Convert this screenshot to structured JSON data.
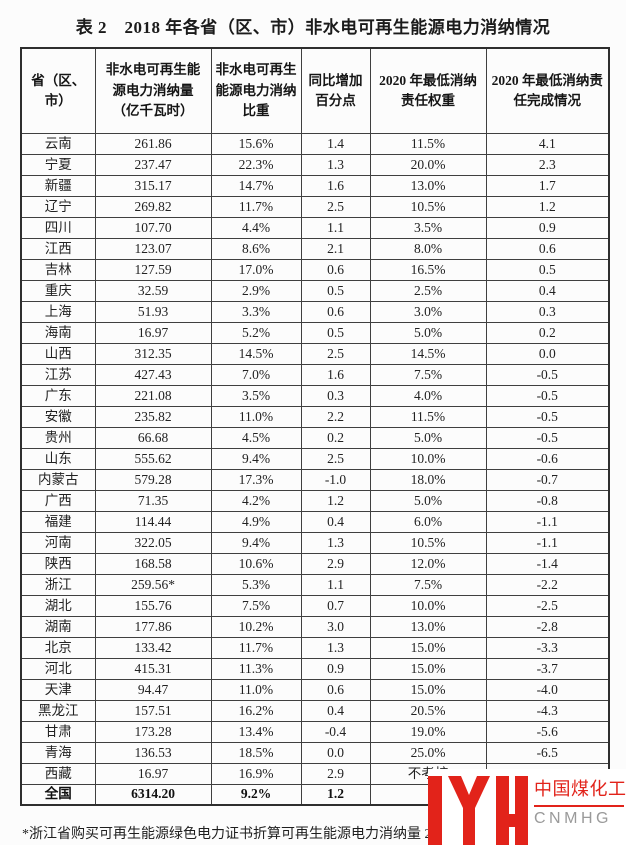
{
  "page": {
    "title": "表 2　2018 年各省（区、市）非水电可再生能源电力消纳情况",
    "footnote": "*浙江省购买可再生能源绿色电力证书折算可再生能源电力消纳量 2"
  },
  "table": {
    "headers": [
      "省（区、市）",
      "非水电可再生能源电力消纳量（亿千瓦时）",
      "非水电可再生能源电力消纳比重",
      "同比增加百分点",
      "2020 年最低消纳责任权重",
      "2020 年最低消纳责任完成情况"
    ],
    "rows": [
      {
        "cells": [
          "云南",
          "261.86",
          "15.6%",
          "1.4",
          "11.5%",
          "4.1"
        ],
        "is_total": false
      },
      {
        "cells": [
          "宁夏",
          "237.47",
          "22.3%",
          "1.3",
          "20.0%",
          "2.3"
        ],
        "is_total": false
      },
      {
        "cells": [
          "新疆",
          "315.17",
          "14.7%",
          "1.6",
          "13.0%",
          "1.7"
        ],
        "is_total": false
      },
      {
        "cells": [
          "辽宁",
          "269.82",
          "11.7%",
          "2.5",
          "10.5%",
          "1.2"
        ],
        "is_total": false
      },
      {
        "cells": [
          "四川",
          "107.70",
          "4.4%",
          "1.1",
          "3.5%",
          "0.9"
        ],
        "is_total": false
      },
      {
        "cells": [
          "江西",
          "123.07",
          "8.6%",
          "2.1",
          "8.0%",
          "0.6"
        ],
        "is_total": false
      },
      {
        "cells": [
          "吉林",
          "127.59",
          "17.0%",
          "0.6",
          "16.5%",
          "0.5"
        ],
        "is_total": false
      },
      {
        "cells": [
          "重庆",
          "32.59",
          "2.9%",
          "0.5",
          "2.5%",
          "0.4"
        ],
        "is_total": false
      },
      {
        "cells": [
          "上海",
          "51.93",
          "3.3%",
          "0.6",
          "3.0%",
          "0.3"
        ],
        "is_total": false
      },
      {
        "cells": [
          "海南",
          "16.97",
          "5.2%",
          "0.5",
          "5.0%",
          "0.2"
        ],
        "is_total": false
      },
      {
        "cells": [
          "山西",
          "312.35",
          "14.5%",
          "2.5",
          "14.5%",
          "0.0"
        ],
        "is_total": false
      },
      {
        "cells": [
          "江苏",
          "427.43",
          "7.0%",
          "1.6",
          "7.5%",
          "-0.5"
        ],
        "is_total": false
      },
      {
        "cells": [
          "广东",
          "221.08",
          "3.5%",
          "0.3",
          "4.0%",
          "-0.5"
        ],
        "is_total": false
      },
      {
        "cells": [
          "安徽",
          "235.82",
          "11.0%",
          "2.2",
          "11.5%",
          "-0.5"
        ],
        "is_total": false
      },
      {
        "cells": [
          "贵州",
          "66.68",
          "4.5%",
          "0.2",
          "5.0%",
          "-0.5"
        ],
        "is_total": false
      },
      {
        "cells": [
          "山东",
          "555.62",
          "9.4%",
          "2.5",
          "10.0%",
          "-0.6"
        ],
        "is_total": false
      },
      {
        "cells": [
          "内蒙古",
          "579.28",
          "17.3%",
          "-1.0",
          "18.0%",
          "-0.7"
        ],
        "is_total": false
      },
      {
        "cells": [
          "广西",
          "71.35",
          "4.2%",
          "1.2",
          "5.0%",
          "-0.8"
        ],
        "is_total": false
      },
      {
        "cells": [
          "福建",
          "114.44",
          "4.9%",
          "0.4",
          "6.0%",
          "-1.1"
        ],
        "is_total": false
      },
      {
        "cells": [
          "河南",
          "322.05",
          "9.4%",
          "1.3",
          "10.5%",
          "-1.1"
        ],
        "is_total": false
      },
      {
        "cells": [
          "陕西",
          "168.58",
          "10.6%",
          "2.9",
          "12.0%",
          "-1.4"
        ],
        "is_total": false
      },
      {
        "cells": [
          "浙江",
          "259.56*",
          "5.3%",
          "1.1",
          "7.5%",
          "-2.2"
        ],
        "is_total": false
      },
      {
        "cells": [
          "湖北",
          "155.76",
          "7.5%",
          "0.7",
          "10.0%",
          "-2.5"
        ],
        "is_total": false
      },
      {
        "cells": [
          "湖南",
          "177.86",
          "10.2%",
          "3.0",
          "13.0%",
          "-2.8"
        ],
        "is_total": false
      },
      {
        "cells": [
          "北京",
          "133.42",
          "11.7%",
          "1.3",
          "15.0%",
          "-3.3"
        ],
        "is_total": false
      },
      {
        "cells": [
          "河北",
          "415.31",
          "11.3%",
          "0.9",
          "15.0%",
          "-3.7"
        ],
        "is_total": false
      },
      {
        "cells": [
          "天津",
          "94.47",
          "11.0%",
          "0.6",
          "15.0%",
          "-4.0"
        ],
        "is_total": false
      },
      {
        "cells": [
          "黑龙江",
          "157.51",
          "16.2%",
          "0.4",
          "20.5%",
          "-4.3"
        ],
        "is_total": false
      },
      {
        "cells": [
          "甘肃",
          "173.28",
          "13.4%",
          "-0.4",
          "19.0%",
          "-5.6"
        ],
        "is_total": false
      },
      {
        "cells": [
          "青海",
          "136.53",
          "18.5%",
          "0.0",
          "25.0%",
          "-6.5"
        ],
        "is_total": false
      },
      {
        "cells": [
          "西藏",
          "16.97",
          "16.9%",
          "2.9",
          "不考核",
          ""
        ],
        "is_total": false
      },
      {
        "cells": [
          "全国",
          "6314.20",
          "9.2%",
          "1.2",
          "",
          ""
        ],
        "is_total": true
      }
    ]
  },
  "watermark": {
    "brand_cn": "中国煤化工",
    "brand_en": "CNMHG",
    "logo_mark": "yh-logo",
    "red": "#e2231a",
    "gray": "#9a9a9a"
  }
}
